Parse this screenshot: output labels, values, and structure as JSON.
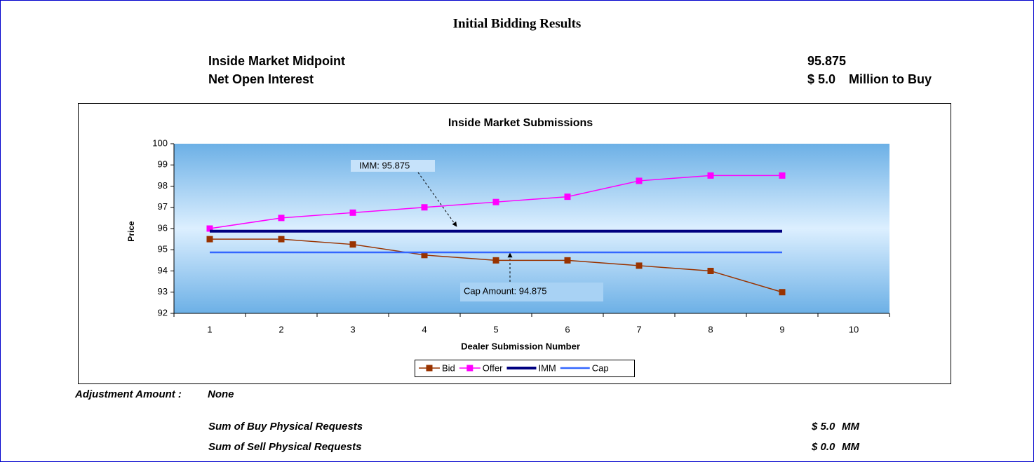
{
  "report_title": "Initial Bidding Results",
  "inside_market_midpoint": {
    "label": "Inside Market Midpoint",
    "value": "95.875"
  },
  "net_open_interest": {
    "label": "Net Open Interest",
    "value": "$ 5.0",
    "unit": "Million to Buy"
  },
  "chart_data": {
    "type": "line",
    "title": "Inside Market Submissions",
    "x_label": "Dealer Submission Number",
    "y_label": "Price",
    "categories": [
      "1",
      "2",
      "3",
      "4",
      "5",
      "6",
      "7",
      "8",
      "9",
      "10"
    ],
    "series": [
      {
        "name": "Bid",
        "color": "#993300",
        "marker": "square",
        "line_width": 1.5,
        "values": [
          95.5,
          95.5,
          95.25,
          94.75,
          94.5,
          94.5,
          94.25,
          94,
          93,
          null
        ]
      },
      {
        "name": "Offer",
        "color": "#ff00ff",
        "marker": "square",
        "line_width": 1.5,
        "values": [
          96,
          96.5,
          96.75,
          97,
          97.25,
          97.5,
          98.25,
          98.5,
          98.5,
          null
        ]
      },
      {
        "name": "IMM",
        "color": "#000080",
        "marker": null,
        "line_width": 4,
        "values": [
          95.875,
          95.875,
          95.875,
          95.875,
          95.875,
          95.875,
          95.875,
          95.875,
          95.875,
          null
        ]
      },
      {
        "name": "Cap",
        "color": "#3366ff",
        "marker": null,
        "line_width": 2.5,
        "values": [
          94.875,
          94.875,
          94.875,
          94.875,
          94.875,
          94.875,
          94.875,
          94.875,
          94.875,
          null
        ]
      }
    ],
    "ylim": [
      92,
      100
    ],
    "yticks": [
      92,
      93,
      94,
      95,
      96,
      97,
      98,
      99,
      100
    ],
    "annotations": [
      "IMM: 95.875",
      "Cap Amount: 94.875"
    ],
    "legend": "bottom",
    "grid": false
  },
  "adjustment": {
    "label": "Adjustment Amount :",
    "value": "None"
  },
  "requests": [
    {
      "label": "Sum of Buy Physical Requests",
      "value": "$ 5.0",
      "unit": "MM"
    },
    {
      "label": "Sum of Sell Physical Requests",
      "value": "$ 0.0",
      "unit": "MM"
    }
  ]
}
